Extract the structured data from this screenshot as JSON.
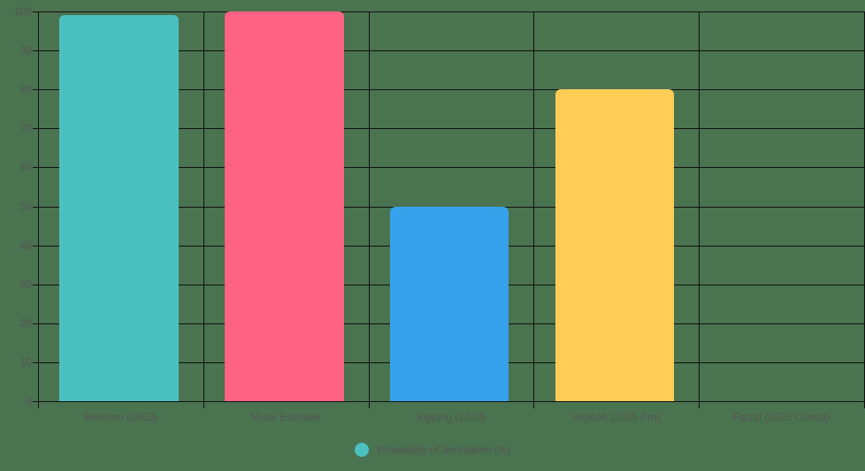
{
  "chart_data": {
    "type": "bar",
    "title": "",
    "xlabel": "",
    "ylabel": "",
    "categories": [
      "Bostrom (2003)",
      "Musk Estimate",
      "Kipping (2020)",
      "Vopson (2025 Pro)",
      "Faizal (2025 Contra)"
    ],
    "series": [
      {
        "name": "Probability of Simulation (%)",
        "values": [
          99,
          100,
          50,
          80,
          0
        ],
        "colors": [
          "#4bc0c0",
          "#ff6384",
          "#36a2eb",
          "#ffcd56",
          "#9966ff"
        ]
      }
    ],
    "ylim": [
      0,
      100
    ],
    "yticks": [
      0,
      10,
      20,
      30,
      40,
      50,
      60,
      70,
      80,
      90,
      100
    ],
    "grid": true,
    "legend_position": "bottom"
  },
  "legend": {
    "label": "Probability of Simulation (%)",
    "color": "#4bc0c0"
  }
}
